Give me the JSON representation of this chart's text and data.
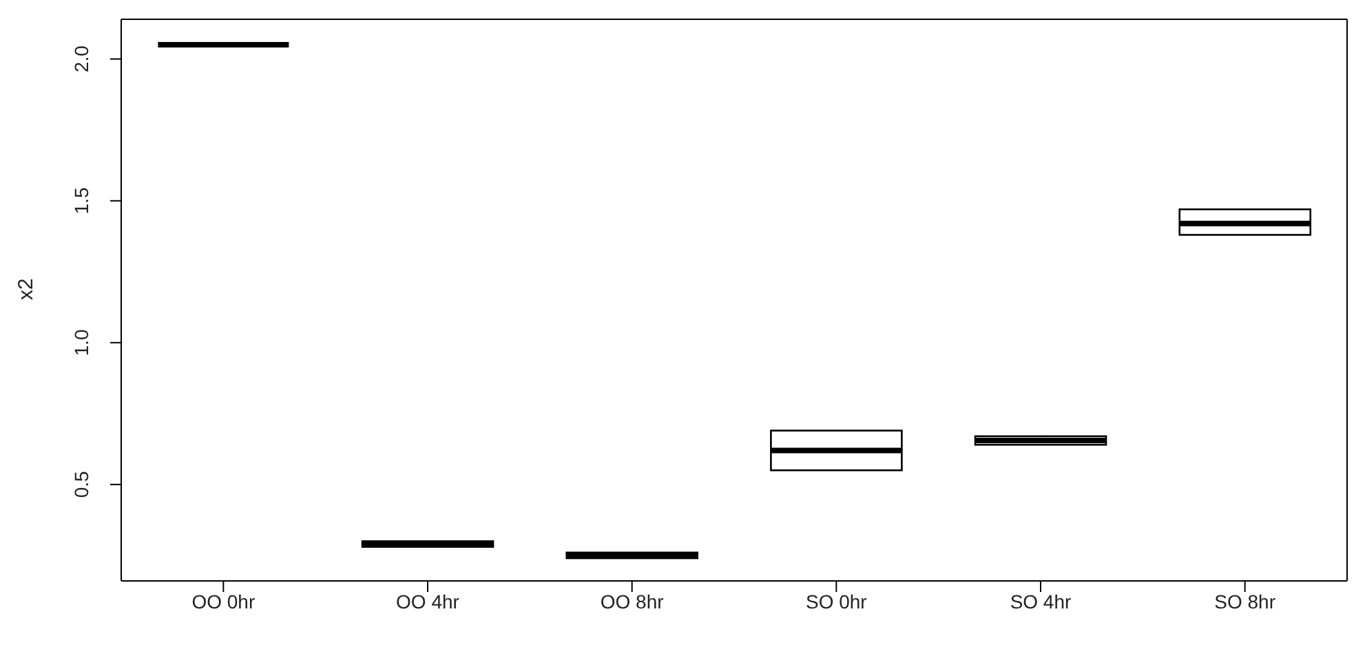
{
  "chart_data": {
    "type": "box",
    "ylabel": "x2",
    "categories": [
      "OO 0hr",
      "OO 4hr",
      "OO 8hr",
      "SO 0hr",
      "SO 4hr",
      "SO 8hr"
    ],
    "boxes": [
      {
        "low": 2.05,
        "q1": 2.05,
        "median": 2.05,
        "q3": 2.05,
        "high": 2.05
      },
      {
        "low": 0.28,
        "q1": 0.28,
        "median": 0.29,
        "q3": 0.3,
        "high": 0.3
      },
      {
        "low": 0.24,
        "q1": 0.24,
        "median": 0.25,
        "q3": 0.26,
        "high": 0.26
      },
      {
        "low": 0.55,
        "q1": 0.55,
        "median": 0.62,
        "q3": 0.69,
        "high": 0.69
      },
      {
        "low": 0.64,
        "q1": 0.64,
        "median": 0.655,
        "q3": 0.67,
        "high": 0.67
      },
      {
        "low": 1.38,
        "q1": 1.38,
        "median": 1.42,
        "q3": 1.47,
        "high": 1.47
      }
    ],
    "ylim": [
      0.16,
      2.14
    ],
    "yticks": [
      {
        "value": 0.5,
        "label": "0.5"
      },
      {
        "value": 1,
        "label": "1.0"
      },
      {
        "value": 1.5,
        "label": "1.5"
      },
      {
        "value": 2,
        "label": "2.0"
      }
    ]
  }
}
